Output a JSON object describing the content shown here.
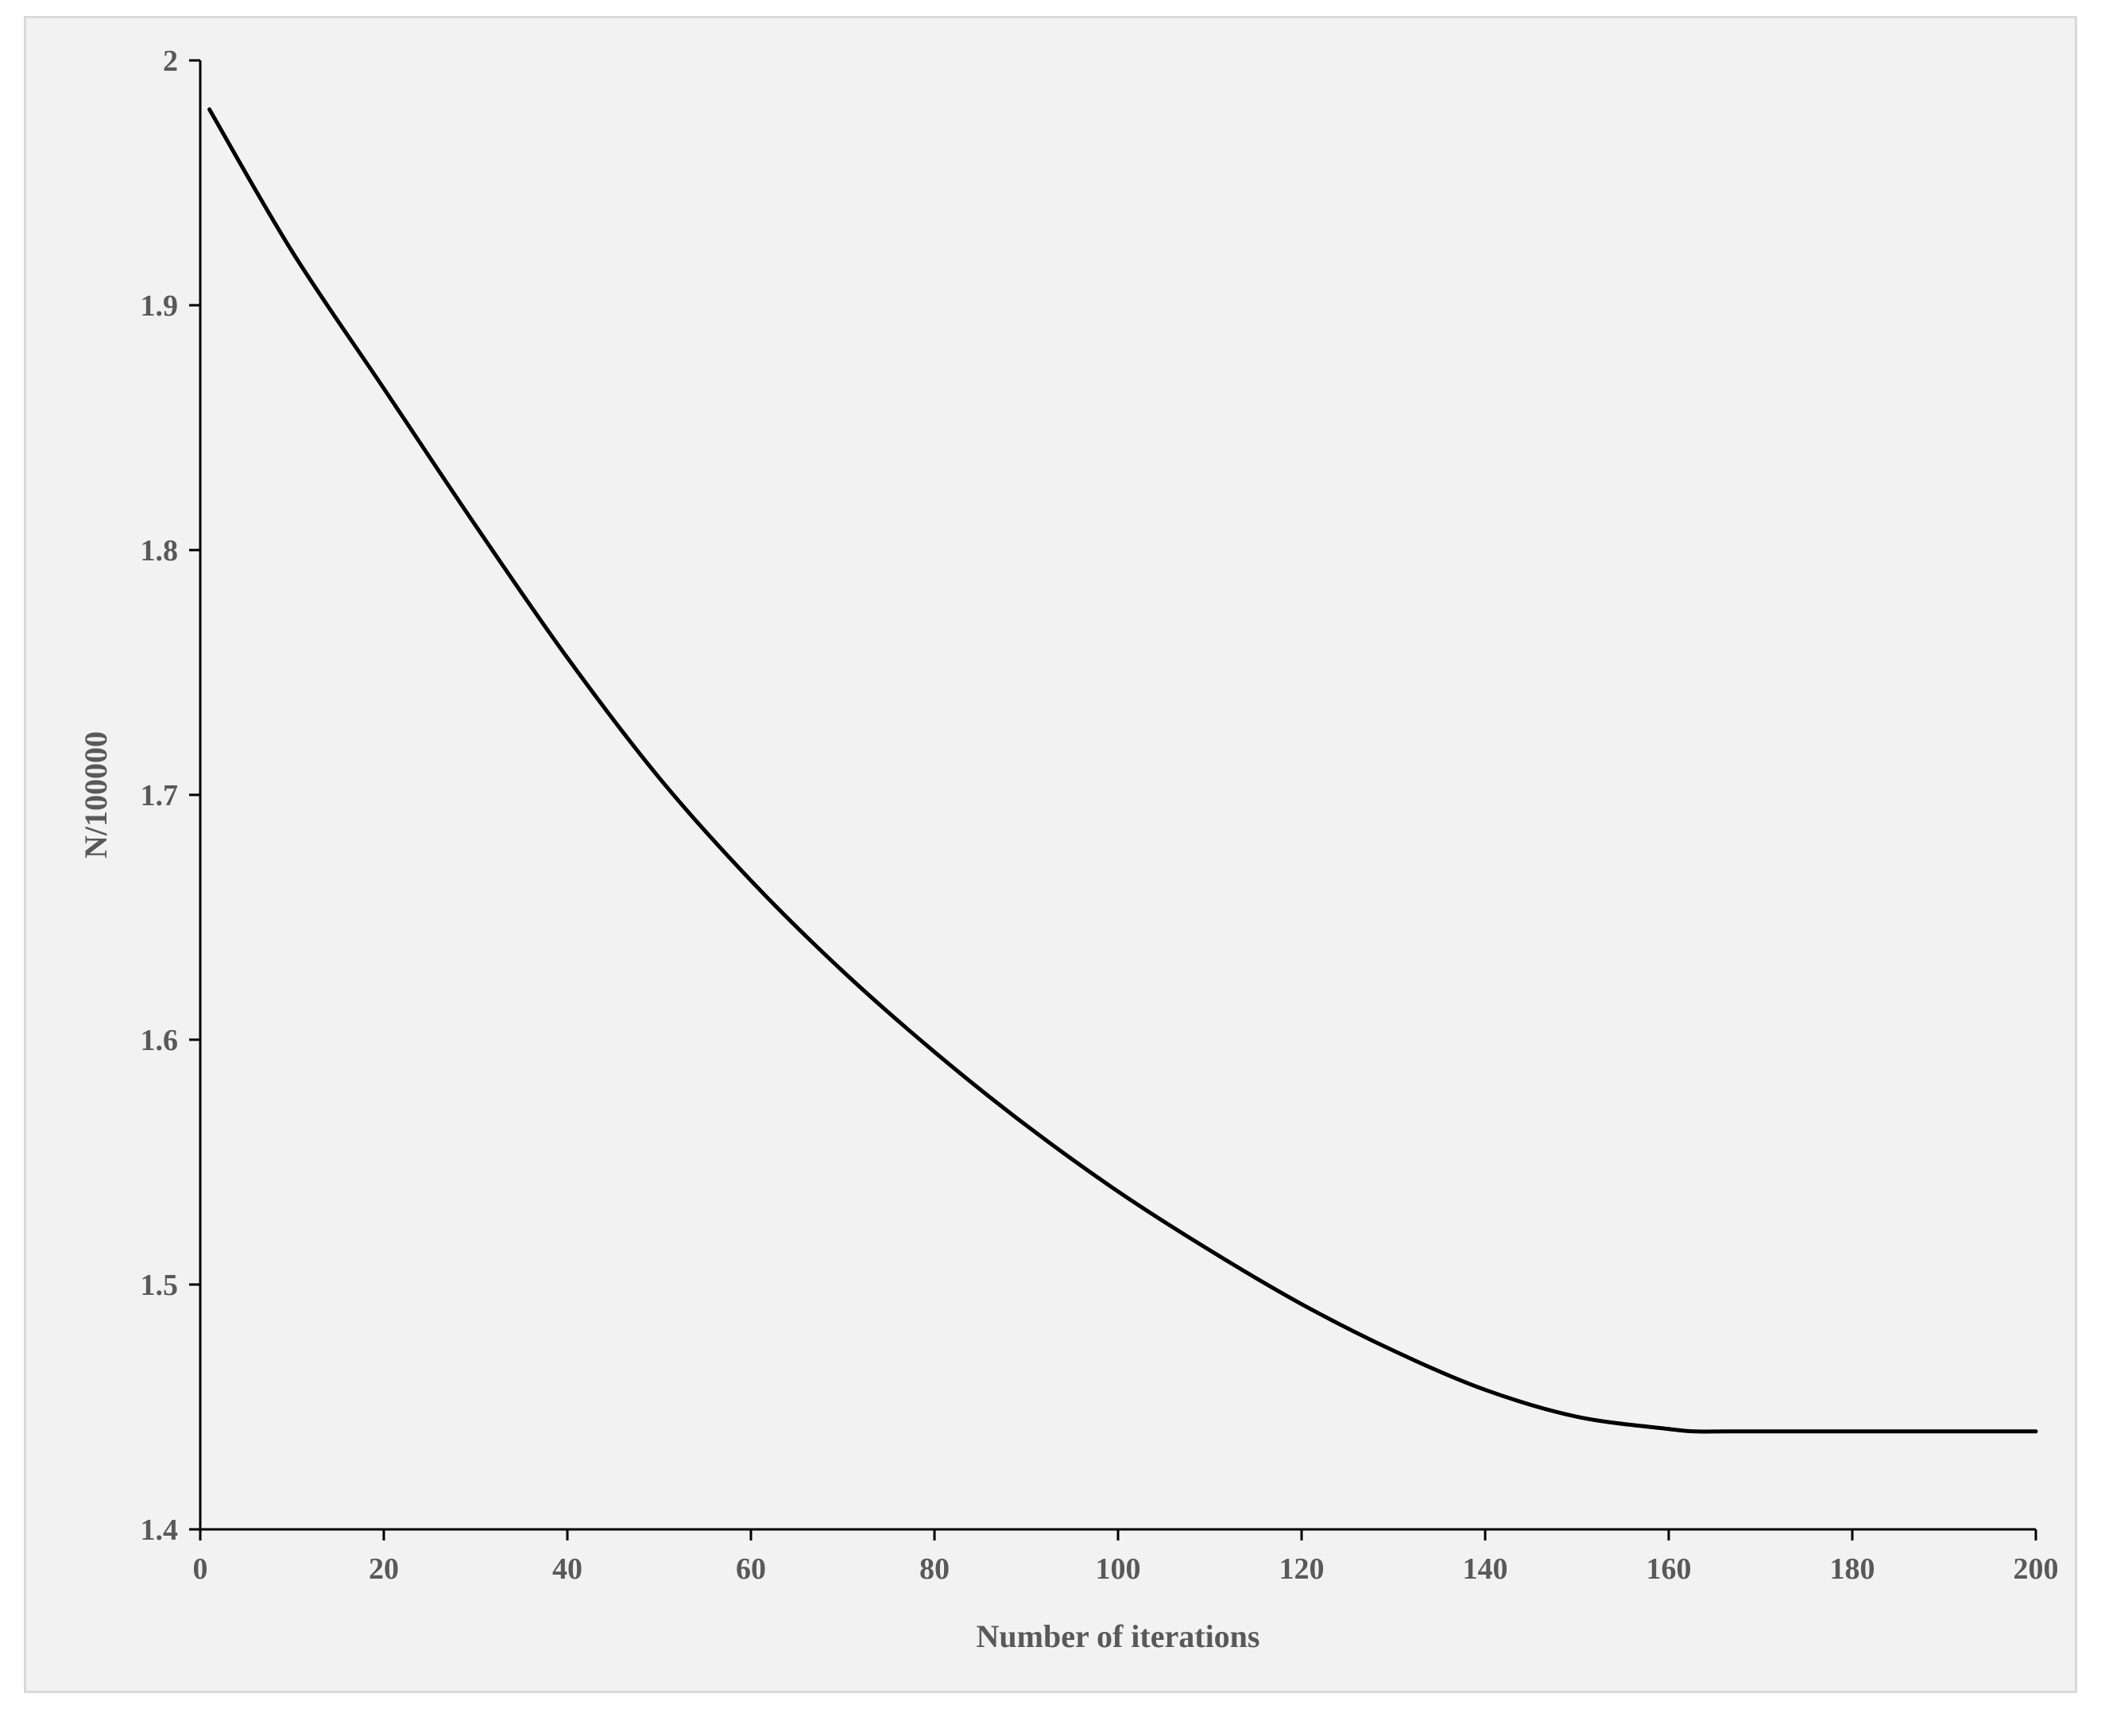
{
  "chart_data": {
    "type": "line",
    "title": "",
    "xlabel": "Number of iterations",
    "ylabel": "N/100000",
    "xlim": [
      0,
      200
    ],
    "ylim": [
      1.4,
      2.0
    ],
    "x_ticks": [
      0,
      20,
      40,
      60,
      80,
      100,
      120,
      140,
      160,
      180,
      200
    ],
    "x_tick_labels": [
      "0",
      "20",
      "40",
      "60",
      "80",
      "100",
      "120",
      "140",
      "160",
      "180",
      "200"
    ],
    "y_ticks": [
      1.4,
      1.5,
      1.6,
      1.7,
      1.8,
      1.9,
      2.0
    ],
    "y_tick_labels": [
      "1.4",
      "1.5",
      "1.6",
      "1.7",
      "1.8",
      "1.9",
      "2"
    ],
    "grid": false,
    "legend": "none",
    "colors": {
      "line": "#000000",
      "axis": "#000000",
      "text": "#595959",
      "background": "#f2f2f2"
    },
    "series": [
      {
        "x": [
          1,
          10,
          20,
          30,
          40,
          50,
          60,
          70,
          80,
          90,
          100,
          110,
          120,
          130,
          140,
          150,
          160,
          163,
          166,
          170,
          180,
          190,
          200
        ],
        "y": [
          1.98,
          1.922,
          1.866,
          1.81,
          1.756,
          1.707,
          1.665,
          1.628,
          1.595,
          1.565,
          1.538,
          1.514,
          1.492,
          1.473,
          1.457,
          1.446,
          1.441,
          1.44,
          1.44,
          1.44,
          1.44,
          1.44,
          1.44
        ]
      }
    ]
  }
}
